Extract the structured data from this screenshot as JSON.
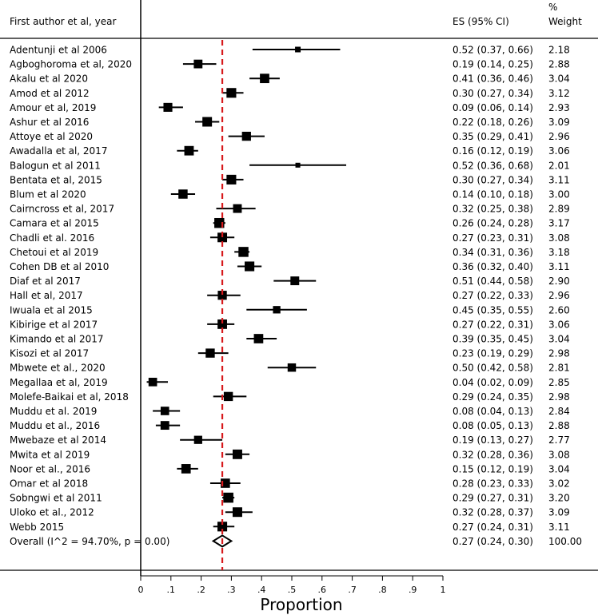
{
  "chart_data": {
    "type": "forest",
    "header": {
      "study_label": "First author et al, year",
      "es_label": "ES (95% CI)",
      "weight_label_line1": "%",
      "weight_label_line2": "Weight"
    },
    "xlabel": "Proportion",
    "xlim": [
      0,
      1
    ],
    "xticks": [
      {
        "value": 0,
        "label": "0"
      },
      {
        "value": 0.1,
        "label": ".1"
      },
      {
        "value": 0.2,
        "label": ".2"
      },
      {
        "value": 0.3,
        "label": ".3"
      },
      {
        "value": 0.4,
        "label": ".4"
      },
      {
        "value": 0.5,
        "label": ".5"
      },
      {
        "value": 0.6,
        "label": ".6"
      },
      {
        "value": 0.7,
        "label": ".7"
      },
      {
        "value": 0.8,
        "label": ".8"
      },
      {
        "value": 0.9,
        "label": ".9"
      },
      {
        "value": 1,
        "label": "1"
      }
    ],
    "reference_line": 0.27,
    "studies": [
      {
        "name": "Adentunji et al 2006",
        "es": 0.52,
        "lo": 0.37,
        "hi": 0.66,
        "es_text": "0.52 (0.37, 0.66)",
        "weight": "2.18"
      },
      {
        "name": "Agboghoroma et al, 2020",
        "es": 0.19,
        "lo": 0.14,
        "hi": 0.25,
        "es_text": "0.19 (0.14, 0.25)",
        "weight": "2.88"
      },
      {
        "name": "Akalu et al 2020",
        "es": 0.41,
        "lo": 0.36,
        "hi": 0.46,
        "es_text": "0.41 (0.36, 0.46)",
        "weight": "3.04"
      },
      {
        "name": "Amod et al 2012",
        "es": 0.3,
        "lo": 0.27,
        "hi": 0.34,
        "es_text": "0.30 (0.27, 0.34)",
        "weight": "3.12"
      },
      {
        "name": "Amour et al, 2019",
        "es": 0.09,
        "lo": 0.06,
        "hi": 0.14,
        "es_text": "0.09 (0.06, 0.14)",
        "weight": "2.93"
      },
      {
        "name": "Ashur et al 2016",
        "es": 0.22,
        "lo": 0.18,
        "hi": 0.26,
        "es_text": "0.22 (0.18, 0.26)",
        "weight": "3.09"
      },
      {
        "name": "Attoye et al 2020",
        "es": 0.35,
        "lo": 0.29,
        "hi": 0.41,
        "es_text": "0.35 (0.29, 0.41)",
        "weight": "2.96"
      },
      {
        "name": "Awadalla et al, 2017",
        "es": 0.16,
        "lo": 0.12,
        "hi": 0.19,
        "es_text": "0.16 (0.12, 0.19)",
        "weight": "3.06"
      },
      {
        "name": "Balogun et al 2011",
        "es": 0.52,
        "lo": 0.36,
        "hi": 0.68,
        "es_text": "0.52 (0.36, 0.68)",
        "weight": "2.01"
      },
      {
        "name": "Bentata et al, 2015",
        "es": 0.3,
        "lo": 0.27,
        "hi": 0.34,
        "es_text": "0.30 (0.27, 0.34)",
        "weight": "3.11"
      },
      {
        "name": "Blum et al 2020",
        "es": 0.14,
        "lo": 0.1,
        "hi": 0.18,
        "es_text": "0.14 (0.10, 0.18)",
        "weight": "3.00"
      },
      {
        "name": "Cairncross et al, 2017",
        "es": 0.32,
        "lo": 0.25,
        "hi": 0.38,
        "es_text": "0.32 (0.25, 0.38)",
        "weight": "2.89"
      },
      {
        "name": "Camara et al 2015",
        "es": 0.26,
        "lo": 0.24,
        "hi": 0.28,
        "es_text": "0.26 (0.24, 0.28)",
        "weight": "3.17"
      },
      {
        "name": "Chadli et al. 2016",
        "es": 0.27,
        "lo": 0.23,
        "hi": 0.31,
        "es_text": "0.27 (0.23, 0.31)",
        "weight": "3.08"
      },
      {
        "name": "Chetoui et al 2019",
        "es": 0.34,
        "lo": 0.31,
        "hi": 0.36,
        "es_text": "0.34 (0.31, 0.36)",
        "weight": "3.18"
      },
      {
        "name": "Cohen DB et al 2010",
        "es": 0.36,
        "lo": 0.32,
        "hi": 0.4,
        "es_text": "0.36 (0.32, 0.40)",
        "weight": "3.11"
      },
      {
        "name": "Diaf et al 2017",
        "es": 0.51,
        "lo": 0.44,
        "hi": 0.58,
        "es_text": "0.51 (0.44, 0.58)",
        "weight": "2.90"
      },
      {
        "name": "Hall et al, 2017",
        "es": 0.27,
        "lo": 0.22,
        "hi": 0.33,
        "es_text": "0.27 (0.22, 0.33)",
        "weight": "2.96"
      },
      {
        "name": "Iwuala et al 2015",
        "es": 0.45,
        "lo": 0.35,
        "hi": 0.55,
        "es_text": "0.45 (0.35, 0.55)",
        "weight": "2.60"
      },
      {
        "name": "Kibirige et al 2017",
        "es": 0.27,
        "lo": 0.22,
        "hi": 0.31,
        "es_text": "0.27 (0.22, 0.31)",
        "weight": "3.06"
      },
      {
        "name": "Kimando et al 2017",
        "es": 0.39,
        "lo": 0.35,
        "hi": 0.45,
        "es_text": "0.39 (0.35, 0.45)",
        "weight": "3.04"
      },
      {
        "name": "Kisozi et al 2017",
        "es": 0.23,
        "lo": 0.19,
        "hi": 0.29,
        "es_text": "0.23 (0.19, 0.29)",
        "weight": "2.98"
      },
      {
        "name": "Mbwete et al., 2020",
        "es": 0.5,
        "lo": 0.42,
        "hi": 0.58,
        "es_text": "0.50 (0.42, 0.58)",
        "weight": "2.81"
      },
      {
        "name": "Megallaa et al, 2019",
        "es": 0.04,
        "lo": 0.02,
        "hi": 0.09,
        "es_text": "0.04 (0.02, 0.09)",
        "weight": "2.85"
      },
      {
        "name": "Molefe-Baikai et al, 2018",
        "es": 0.29,
        "lo": 0.24,
        "hi": 0.35,
        "es_text": "0.29 (0.24, 0.35)",
        "weight": "2.98"
      },
      {
        "name": "Muddu et al. 2019",
        "es": 0.08,
        "lo": 0.04,
        "hi": 0.13,
        "es_text": "0.08 (0.04, 0.13)",
        "weight": "2.84"
      },
      {
        "name": "Muddu et al., 2016",
        "es": 0.08,
        "lo": 0.05,
        "hi": 0.13,
        "es_text": "0.08 (0.05, 0.13)",
        "weight": "2.88"
      },
      {
        "name": "Mwebaze et al 2014",
        "es": 0.19,
        "lo": 0.13,
        "hi": 0.27,
        "es_text": "0.19 (0.13, 0.27)",
        "weight": "2.77"
      },
      {
        "name": "Mwita et al 2019",
        "es": 0.32,
        "lo": 0.28,
        "hi": 0.36,
        "es_text": "0.32 (0.28, 0.36)",
        "weight": "3.08"
      },
      {
        "name": "Noor et al., 2016",
        "es": 0.15,
        "lo": 0.12,
        "hi": 0.19,
        "es_text": "0.15 (0.12, 0.19)",
        "weight": "3.04"
      },
      {
        "name": "Omar et al 2018",
        "es": 0.28,
        "lo": 0.23,
        "hi": 0.33,
        "es_text": "0.28 (0.23, 0.33)",
        "weight": "3.02"
      },
      {
        "name": "Sobngwi et al 2011",
        "es": 0.29,
        "lo": 0.27,
        "hi": 0.31,
        "es_text": "0.29 (0.27, 0.31)",
        "weight": "3.20"
      },
      {
        "name": "Uloko et al., 2012",
        "es": 0.32,
        "lo": 0.28,
        "hi": 0.37,
        "es_text": "0.32 (0.28, 0.37)",
        "weight": "3.09"
      },
      {
        "name": "Webb 2015",
        "es": 0.27,
        "lo": 0.24,
        "hi": 0.31,
        "es_text": "0.27 (0.24, 0.31)",
        "weight": "3.11"
      }
    ],
    "overall": {
      "label": "Overall  (I^2 = 94.70%, p = 0.00)",
      "es": 0.27,
      "lo": 0.24,
      "hi": 0.3,
      "es_text": "0.27 (0.24, 0.30)",
      "weight": "100.00"
    },
    "colors": {
      "marker": "#000000",
      "reference_line": "#d7191c",
      "diamond_stroke": "#000000",
      "diamond_fill": "#ffffff"
    }
  }
}
